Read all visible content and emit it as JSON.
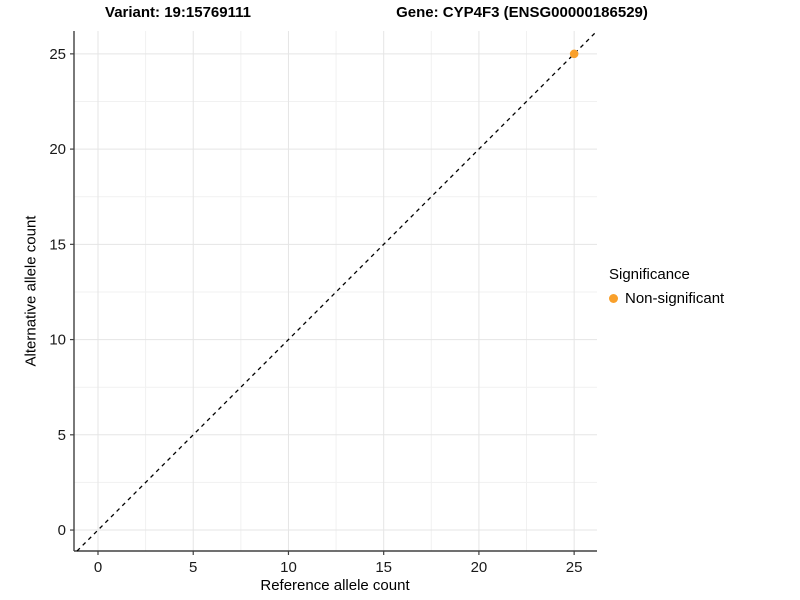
{
  "chart_data": {
    "type": "scatter",
    "title_left": "Variant: 19:15769111",
    "title_right": "Gene: CYP4F3 (ENSG00000186529)",
    "xlabel": "Reference allele count",
    "ylabel": "Alternative allele count",
    "x_ticks": [
      0,
      5,
      10,
      15,
      20,
      25
    ],
    "y_ticks": [
      0,
      5,
      10,
      15,
      20,
      25
    ],
    "xlim": [
      -1.26,
      26.2
    ],
    "ylim": [
      -1.1,
      26.2
    ],
    "grid": "on",
    "points": [
      {
        "x": 25,
        "y": 25,
        "series": "Non-significant"
      }
    ],
    "reference_line": {
      "type": "identity",
      "slope": 1,
      "intercept": 0,
      "style": "dashed"
    },
    "legend": {
      "title": "Significance",
      "position": "right",
      "entries": [
        {
          "label": "Non-significant",
          "color": "#F9A02B"
        }
      ]
    },
    "colors": {
      "point": "#F9A02B",
      "grid_major": "#E5E5E5",
      "grid_minor": "#F1F1F1",
      "axis_line": "#404040",
      "tick_label": "#1A1A1A",
      "reference_line": "#000000",
      "background": "#FFFFFF"
    }
  }
}
